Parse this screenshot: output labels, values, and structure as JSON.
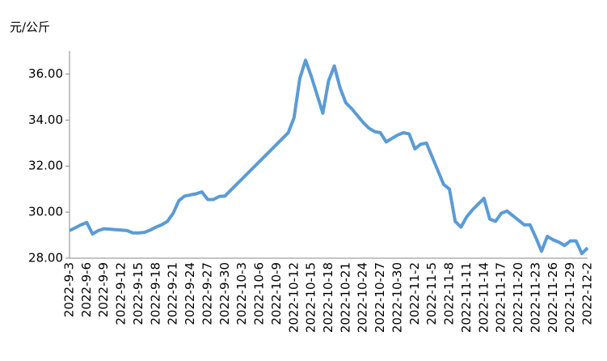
{
  "chart_data": {
    "type": "line",
    "y_label": "元/公斤",
    "categories": [
      "2022-9-3",
      null,
      null,
      "2022-9-6",
      null,
      null,
      "2022-9-9",
      null,
      null,
      "2022-9-12",
      null,
      null,
      "2022-9-15",
      null,
      null,
      "2022-9-18",
      null,
      null,
      "2022-9-21",
      null,
      null,
      "2022-9-24",
      null,
      null,
      "2022-9-27",
      null,
      null,
      "2022-9-30",
      null,
      null,
      "2022-10-3",
      null,
      null,
      "2022-10-6",
      null,
      null,
      "2022-10-9",
      null,
      null,
      "2022-10-12",
      null,
      null,
      "2022-10-15",
      null,
      null,
      "2022-10-18",
      null,
      null,
      "2022-10-21",
      null,
      null,
      "2022-10-24",
      null,
      null,
      "2022-10-27",
      null,
      null,
      "2022-10-30",
      null,
      null,
      "2022-11-2",
      null,
      null,
      "2022-11-5",
      null,
      null,
      "2022-11-8",
      null,
      null,
      "2022-11-11",
      null,
      null,
      "2022-11-14",
      null,
      null,
      "2022-11-17",
      null,
      null,
      "2022-11-20",
      null,
      null,
      "2022-11-23",
      null,
      null,
      "2022-11-26",
      null,
      null,
      "2022-11-29",
      null,
      null,
      "2022-12-2"
    ],
    "color": "#5b9bd5",
    "values": [
      29.2,
      29.32,
      29.45,
      29.55,
      29.05,
      29.2,
      29.28,
      29.26,
      29.24,
      29.22,
      29.2,
      29.1,
      29.1,
      29.12,
      29.22,
      29.35,
      29.45,
      29.6,
      29.95,
      30.5,
      30.7,
      30.75,
      30.8,
      30.88,
      30.55,
      30.55,
      30.68,
      30.7,
      30.95,
      31.2,
      31.45,
      31.7,
      31.95,
      32.2,
      32.45,
      32.7,
      32.95,
      33.2,
      33.45,
      34.1,
      35.8,
      36.6,
      35.9,
      35.1,
      34.3,
      35.7,
      36.35,
      35.4,
      34.75,
      34.5,
      34.2,
      33.9,
      33.65,
      33.5,
      33.45,
      33.05,
      33.2,
      33.35,
      33.45,
      33.4,
      32.75,
      32.95,
      33.0,
      32.4,
      31.8,
      31.2,
      31.0,
      29.6,
      29.35,
      29.8,
      30.1,
      30.35,
      30.6,
      29.7,
      29.6,
      29.95,
      30.05,
      29.85,
      29.65,
      29.45,
      29.45,
      28.9,
      28.3,
      28.95,
      28.8,
      28.7,
      28.55,
      28.75,
      28.75,
      28.2,
      28.45
    ],
    "ylim": [
      28,
      37
    ],
    "yticks": [
      {
        "value": 28,
        "label": "28.00"
      },
      {
        "value": 30,
        "label": "30.00"
      },
      {
        "value": 32,
        "label": "32.00"
      },
      {
        "value": 34,
        "label": "34.00"
      },
      {
        "value": 36,
        "label": "36.00"
      }
    ]
  }
}
